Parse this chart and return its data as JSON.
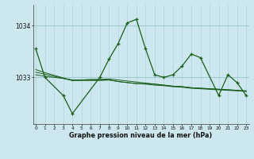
{
  "title": "Graphe pression niveau de la mer (hPa)",
  "bg_color": "#cce8ee",
  "grid_color_v": "#b0d0d8",
  "grid_color_h": "#9fc8d0",
  "line_color": "#1a5e1a",
  "x_ticks": [
    0,
    1,
    2,
    3,
    4,
    5,
    6,
    7,
    8,
    9,
    10,
    11,
    12,
    13,
    14,
    15,
    16,
    17,
    18,
    19,
    20,
    21,
    22,
    23
  ],
  "y_ticks": [
    1033,
    1034
  ],
  "ylim": [
    1032.1,
    1034.4
  ],
  "xlim": [
    -0.3,
    23.3
  ],
  "line1_x": [
    0,
    1,
    2,
    3,
    4,
    5,
    6,
    7,
    8,
    9,
    10,
    11,
    12,
    13,
    14,
    15,
    16,
    17,
    18,
    19,
    20,
    21,
    22,
    23
  ],
  "line1_y": [
    1033.05,
    1033.02,
    1033.0,
    1032.98,
    1032.95,
    1032.95,
    1032.95,
    1032.95,
    1032.95,
    1032.92,
    1032.9,
    1032.88,
    1032.88,
    1032.87,
    1032.85,
    1032.83,
    1032.82,
    1032.8,
    1032.79,
    1032.78,
    1032.77,
    1032.76,
    1032.75,
    1032.74
  ],
  "line2_x": [
    0,
    1,
    2,
    3,
    4,
    5,
    6,
    7,
    8,
    9,
    10,
    11,
    12,
    13,
    14,
    15,
    16,
    17,
    18,
    19,
    20,
    21,
    22,
    23
  ],
  "line2_y": [
    1033.1,
    1033.06,
    1033.02,
    1032.98,
    1032.94,
    1032.94,
    1032.94,
    1032.94,
    1032.95,
    1032.92,
    1032.9,
    1032.88,
    1032.87,
    1032.85,
    1032.84,
    1032.82,
    1032.81,
    1032.79,
    1032.78,
    1032.77,
    1032.76,
    1032.75,
    1032.74,
    1032.73
  ],
  "line3_x": [
    0,
    1,
    2,
    3,
    4,
    5,
    6,
    7,
    8,
    9,
    10,
    11,
    12,
    13,
    14,
    15,
    16,
    17,
    18,
    19,
    20,
    21,
    22,
    23
  ],
  "line3_y": [
    1033.15,
    1033.09,
    1033.04,
    1032.99,
    1032.94,
    1032.95,
    1032.96,
    1032.96,
    1032.97,
    1032.95,
    1032.93,
    1032.91,
    1032.89,
    1032.87,
    1032.85,
    1032.83,
    1032.82,
    1032.8,
    1032.79,
    1032.78,
    1032.77,
    1032.76,
    1032.75,
    1032.73
  ],
  "main_x": [
    0,
    1,
    3,
    4,
    7,
    8,
    9,
    10,
    11,
    12,
    13,
    14,
    15,
    16,
    17,
    18,
    20,
    21,
    22,
    23
  ],
  "main_y": [
    1033.55,
    1033.0,
    1032.65,
    1032.3,
    1033.0,
    1033.35,
    1033.65,
    1034.05,
    1034.12,
    1033.55,
    1033.05,
    1033.0,
    1033.05,
    1033.22,
    1033.45,
    1033.38,
    1032.65,
    1033.05,
    1032.9,
    1032.65
  ]
}
